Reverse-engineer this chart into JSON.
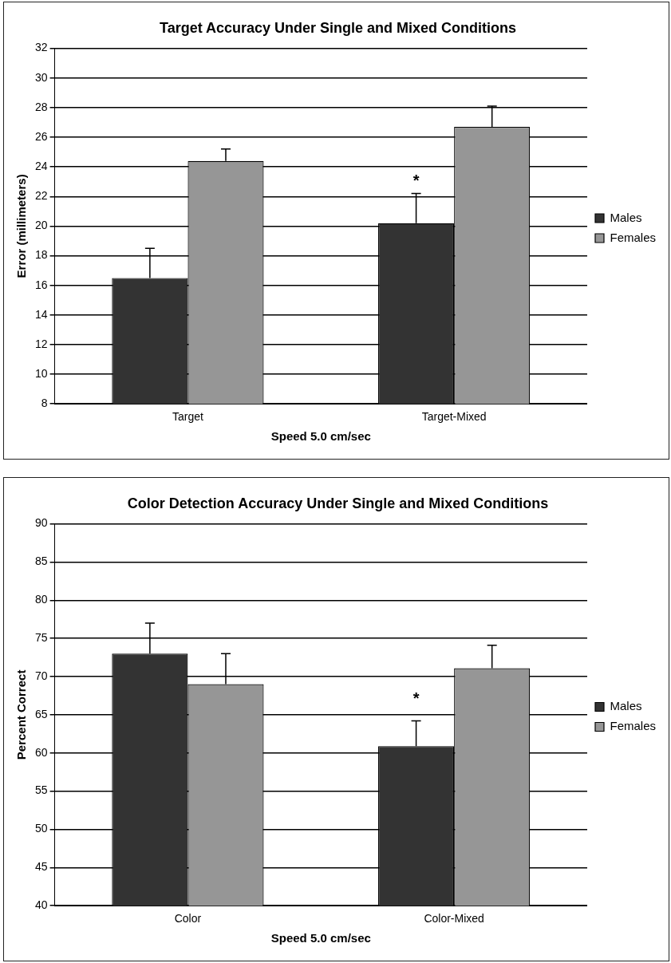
{
  "chart_data": [
    {
      "type": "bar",
      "title": "Target Accuracy Under Single and Mixed Conditions",
      "xlabel": "Speed 5.0 cm/sec",
      "ylabel": "Error (millimeters)",
      "categories": [
        "Target",
        "Target-Mixed"
      ],
      "series": [
        {
          "name": "Males",
          "color": "#333333",
          "values": [
            16.5,
            20.2
          ],
          "errors": [
            [
              16.5,
              18.5
            ],
            [
              20.2,
              22.2
            ]
          ]
        },
        {
          "name": "Females",
          "color": "#969696",
          "values": [
            24.4,
            26.7
          ],
          "errors": [
            [
              24.4,
              25.2
            ],
            [
              26.7,
              28.1
            ]
          ]
        }
      ],
      "ylim": [
        8,
        32
      ],
      "yticks": [
        8,
        10,
        12,
        14,
        16,
        18,
        20,
        22,
        24,
        26,
        28,
        30,
        32
      ],
      "grid": "y",
      "legend": "right",
      "annotations": [
        {
          "text": "*",
          "x": "Target-Mixed",
          "y": 23
        }
      ]
    },
    {
      "type": "bar",
      "title": "Color Detection Accuracy Under Single and Mixed Conditions",
      "xlabel": "Speed 5.0 cm/sec",
      "ylabel": "Percent Correct",
      "categories": [
        "Color",
        "Color-Mixed"
      ],
      "series": [
        {
          "name": "Males",
          "color": "#333333",
          "values": [
            73,
            60.9
          ],
          "errors": [
            [
              73,
              77
            ],
            [
              60.9,
              64.2
            ]
          ]
        },
        {
          "name": "Females",
          "color": "#969696",
          "values": [
            69,
            71.1
          ],
          "errors": [
            [
              69,
              73
            ],
            [
              71.1,
              74.1
            ]
          ]
        }
      ],
      "ylim": [
        40,
        90
      ],
      "yticks": [
        40,
        45,
        50,
        55,
        60,
        65,
        70,
        75,
        80,
        85,
        90
      ],
      "grid": "y",
      "legend": "right",
      "annotations": [
        {
          "text": "*",
          "x": "Color-Mixed",
          "y": 67
        }
      ]
    }
  ]
}
